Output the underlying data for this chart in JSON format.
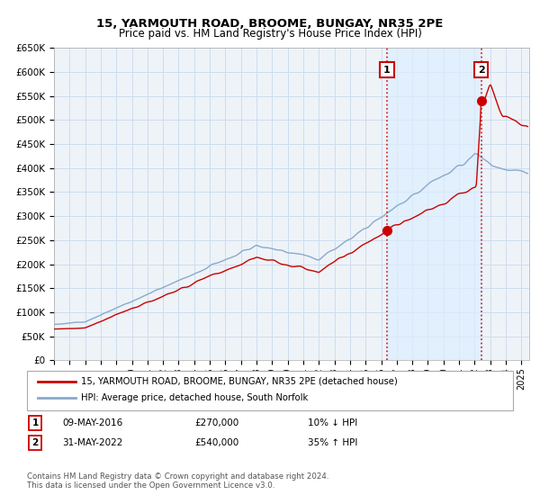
{
  "title": "15, YARMOUTH ROAD, BROOME, BUNGAY, NR35 2PE",
  "subtitle": "Price paid vs. HM Land Registry's House Price Index (HPI)",
  "legend_line1": "15, YARMOUTH ROAD, BROOME, BUNGAY, NR35 2PE (detached house)",
  "legend_line2": "HPI: Average price, detached house, South Norfolk",
  "annotation1_date": "09-MAY-2016",
  "annotation1_price": "£270,000",
  "annotation1_hpi": "10% ↓ HPI",
  "annotation2_date": "31-MAY-2022",
  "annotation2_price": "£540,000",
  "annotation2_hpi": "35% ↑ HPI",
  "footer": "Contains HM Land Registry data © Crown copyright and database right 2024.\nThis data is licensed under the Open Government Licence v3.0.",
  "red_color": "#cc0000",
  "blue_color": "#88aacc",
  "shade_color": "#ddeeff",
  "grid_color": "#ccddee",
  "bg_color": "#eef3f8",
  "ylim": [
    0,
    650000
  ],
  "yticks": [
    0,
    50000,
    100000,
    150000,
    200000,
    250000,
    300000,
    350000,
    400000,
    450000,
    500000,
    550000,
    600000,
    650000
  ],
  "xlim_start": 1995.0,
  "xlim_end": 2025.5,
  "marker1_x": 2016.36,
  "marker1_y": 270000,
  "marker2_x": 2022.42,
  "marker2_y": 540000,
  "vline1_x": 2016.36,
  "vline2_x": 2022.42
}
